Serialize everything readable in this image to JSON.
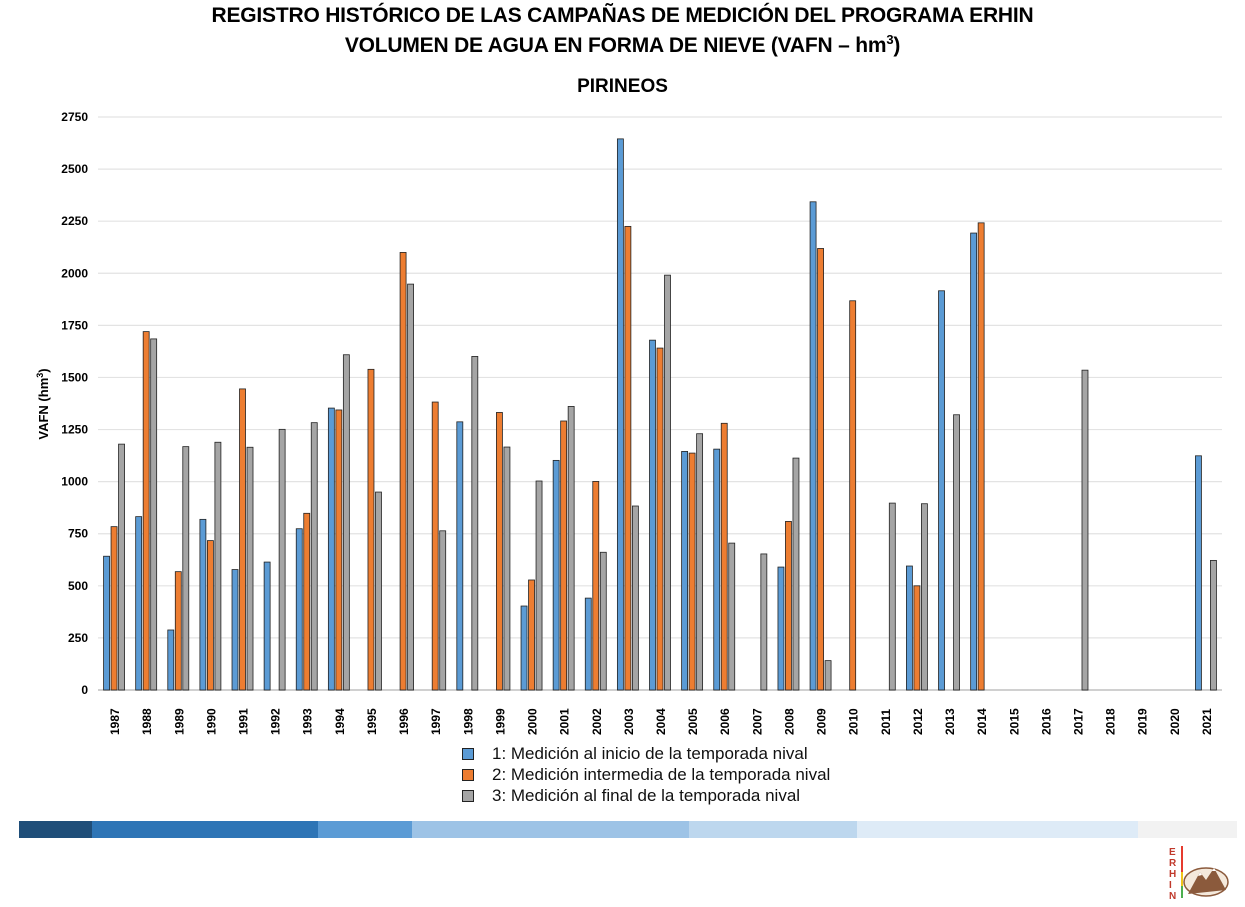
{
  "header": {
    "title_line1": "REGISTRO HISTÓRICO DE LAS CAMPAÑAS DE MEDICIÓN DEL PROGRAMA ERHIN",
    "title_line2_main": "VOLUMEN DE AGUA EN FORMA DE NIEVE (VAFN – hm",
    "title_line2_sup": "3",
    "title_line2_end": ")"
  },
  "chart_data": {
    "type": "bar",
    "title": "PIRINEOS",
    "xlabel": "",
    "ylabel": "VAFN (hm3)",
    "ylabel_main": "VAFN (hm",
    "ylabel_sup": "3",
    "ylabel_end": ")",
    "ylim": [
      0,
      2750
    ],
    "yticks": [
      0,
      250,
      500,
      750,
      1000,
      1250,
      1500,
      1750,
      2000,
      2250,
      2500,
      2750
    ],
    "grid": true,
    "legend_position": "bottom",
    "categories": [
      "1987",
      "1988",
      "1989",
      "1990",
      "1991",
      "1992",
      "1993",
      "1994",
      "1995",
      "1996",
      "1997",
      "1998",
      "1999",
      "2000",
      "2001",
      "2002",
      "2003",
      "2004",
      "2005",
      "2006",
      "2007",
      "2008",
      "2009",
      "2010",
      "2011",
      "2012",
      "2013",
      "2014",
      "2015",
      "2016",
      "2017",
      "2018",
      "2019",
      "2020",
      "2021"
    ],
    "series": [
      {
        "name": "1: Medición al inicio de la temporada nival",
        "color": "#5b9bd5",
        "values": [
          642,
          832,
          288,
          819,
          578,
          614,
          774,
          1353,
          null,
          null,
          null,
          1287,
          null,
          403,
          1102,
          441,
          2645,
          1679,
          1145,
          1156,
          null,
          590,
          2343,
          null,
          null,
          595,
          1916,
          2193,
          null,
          null,
          null,
          null,
          null,
          null,
          1124
        ]
      },
      {
        "name": "2: Medición intermedia de la temporada nival",
        "color": "#ed7d31",
        "values": [
          784,
          1720,
          568,
          717,
          1445,
          null,
          848,
          1344,
          1539,
          2100,
          1382,
          null,
          1332,
          528,
          1291,
          1001,
          2225,
          1641,
          1137,
          1280,
          null,
          809,
          2119,
          1868,
          null,
          500,
          null,
          2242,
          null,
          null,
          null,
          null,
          null,
          null,
          null
        ]
      },
      {
        "name": "3: Medición al final de la temporada nival",
        "color": "#a5a5a5",
        "values": [
          1180,
          1685,
          1168,
          1189,
          1165,
          1251,
          1283,
          1609,
          950,
          1948,
          764,
          1601,
          1166,
          1003,
          1361,
          661,
          883,
          1991,
          1230,
          705,
          653,
          1113,
          141,
          null,
          897,
          894,
          1321,
          null,
          null,
          null,
          1535,
          null,
          null,
          null,
          622
        ]
      }
    ]
  },
  "footer": {
    "band_colors": [
      "#1f4e79",
      "#2e75b6",
      "#5b9bd5",
      "#9dc3e6",
      "#bdd7ee",
      "#deebf7",
      "#f2f2f2"
    ],
    "logo_letters": [
      "E",
      "R",
      "H",
      "I",
      "N"
    ]
  }
}
